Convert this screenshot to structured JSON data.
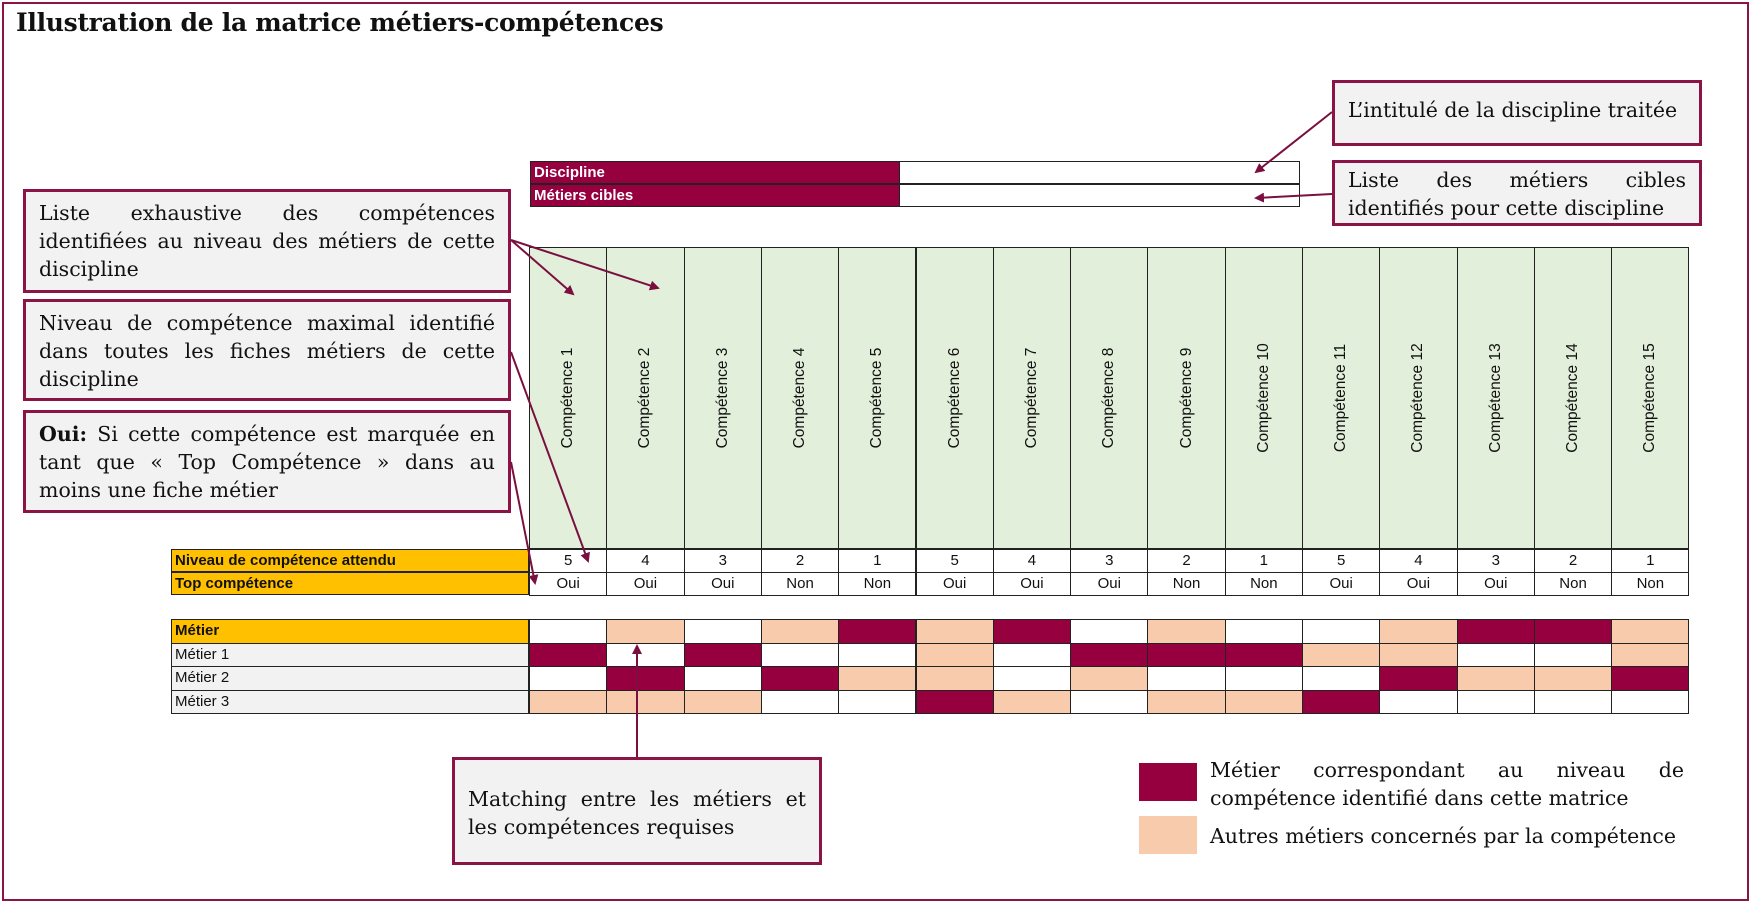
{
  "title": "Illustration de la matrice métiers-compétences",
  "colors": {
    "accent": "#96003f",
    "match": "#96003f",
    "other": "#f8cbad",
    "header_green": "#e2efda",
    "label_yellow": "#ffc000",
    "callout_bg": "#f2f2f2"
  },
  "callouts": {
    "discipline_title": "L’intitulé de la discipline traitée",
    "target_jobs": "Liste des métiers cibles identifiés pour cette discipline",
    "skills_list": "Liste exhaustive des compétences identifiées au niveau des métiers de cette discipline",
    "max_level": "Niveau de compétence maximal identifié dans toutes les fiches métiers de cette discipline",
    "top_bold": "Oui:",
    "top_rest": " Si cette compétence est marquée en tant que « Top Compétence » dans au moins une fiche métier",
    "matching": "Matching entre les métiers et les compétences requises"
  },
  "header_table": {
    "discipline_label": "Discipline",
    "target_jobs_label": "Métiers cibles"
  },
  "rows": {
    "level_label": "Niveau de compétence attendu",
    "top_label": "Top compétence",
    "metier_label": "Métier"
  },
  "competences": [
    "Compétence 1",
    "Compétence 2",
    "Compétence 3",
    "Compétence 4",
    "Compétence 5",
    "Compétence 6",
    "Compétence 7",
    "Compétence 8",
    "Compétence 9",
    "Compétence 10",
    "Compétence 11",
    "Compétence 12",
    "Compétence 13",
    "Compétence 14",
    "Compétence 15"
  ],
  "levels": [
    "5",
    "4",
    "3",
    "2",
    "1",
    "5",
    "4",
    "3",
    "2",
    "1",
    "5",
    "4",
    "3",
    "2",
    "1"
  ],
  "top": [
    "Oui",
    "Oui",
    "Oui",
    "Non",
    "Non",
    "Oui",
    "Oui",
    "Oui",
    "Non",
    "Non",
    "Oui",
    "Oui",
    "Oui",
    "Non",
    "Non"
  ],
  "matrix": [
    {
      "name": "Métier",
      "cells": [
        "W",
        "O",
        "W",
        "O",
        "M",
        "O",
        "M",
        "W",
        "O",
        "W",
        "W",
        "O",
        "M",
        "M",
        "O"
      ]
    },
    {
      "name": "Métier 1",
      "cells": [
        "M",
        "W",
        "M",
        "W",
        "W",
        "O",
        "W",
        "M",
        "M",
        "M",
        "O",
        "O",
        "W",
        "W",
        "O"
      ]
    },
    {
      "name": "Métier 2",
      "cells": [
        "W",
        "M",
        "W",
        "M",
        "O",
        "O",
        "W",
        "O",
        "W",
        "W",
        "W",
        "M",
        "O",
        "O",
        "M"
      ]
    },
    {
      "name": "Métier 3",
      "cells": [
        "O",
        "O",
        "O",
        "W",
        "W",
        "M",
        "O",
        "W",
        "O",
        "O",
        "M",
        "W",
        "W",
        "W",
        "W"
      ]
    }
  ],
  "legend": {
    "match": "Métier correspondant au niveau de compétence identifié dans cette matrice",
    "other": "Autres métiers concernés par la compétence"
  }
}
